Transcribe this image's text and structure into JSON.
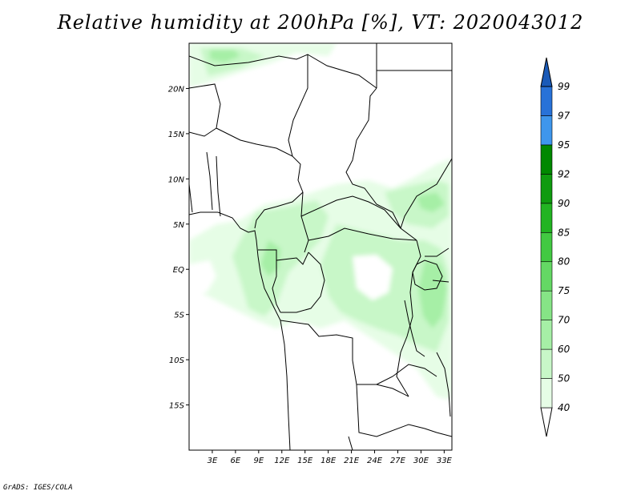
{
  "title": "Relative humidity at 200hPa [%], VT: 2020043012",
  "footer": "GrADS: IGES/COLA",
  "map": {
    "lon_range": [
      0,
      34
    ],
    "lat_range": [
      -20,
      25
    ],
    "lon_ticks": [
      {
        "value": 3,
        "label": "3E"
      },
      {
        "value": 6,
        "label": "6E"
      },
      {
        "value": 9,
        "label": "9E"
      },
      {
        "value": 12,
        "label": "12E"
      },
      {
        "value": 15,
        "label": "15E"
      },
      {
        "value": 18,
        "label": "18E"
      },
      {
        "value": 21,
        "label": "21E"
      },
      {
        "value": 24,
        "label": "24E"
      },
      {
        "value": 27,
        "label": "27E"
      },
      {
        "value": 30,
        "label": "30E"
      },
      {
        "value": 33,
        "label": "33E"
      }
    ],
    "lat_ticks": [
      {
        "value": 20,
        "label": "20N"
      },
      {
        "value": 15,
        "label": "15N"
      },
      {
        "value": 10,
        "label": "10N"
      },
      {
        "value": 5,
        "label": "5N"
      },
      {
        "value": 0,
        "label": "EQ"
      },
      {
        "value": -5,
        "label": "5S"
      },
      {
        "value": -10,
        "label": "10S"
      },
      {
        "value": -15,
        "label": "15S"
      }
    ]
  },
  "colorbar": {
    "levels": [
      "40",
      "50",
      "60",
      "70",
      "75",
      "80",
      "85",
      "90",
      "92",
      "95",
      "97",
      "99"
    ],
    "colors": [
      "#ffffff",
      "#e6fde6",
      "#c8f7c8",
      "#a6efa6",
      "#86e486",
      "#64d864",
      "#42c942",
      "#22b422",
      "#0f9b0f",
      "#008800",
      "#3e96ec",
      "#2872d8",
      "#1a5ab8"
    ]
  }
}
